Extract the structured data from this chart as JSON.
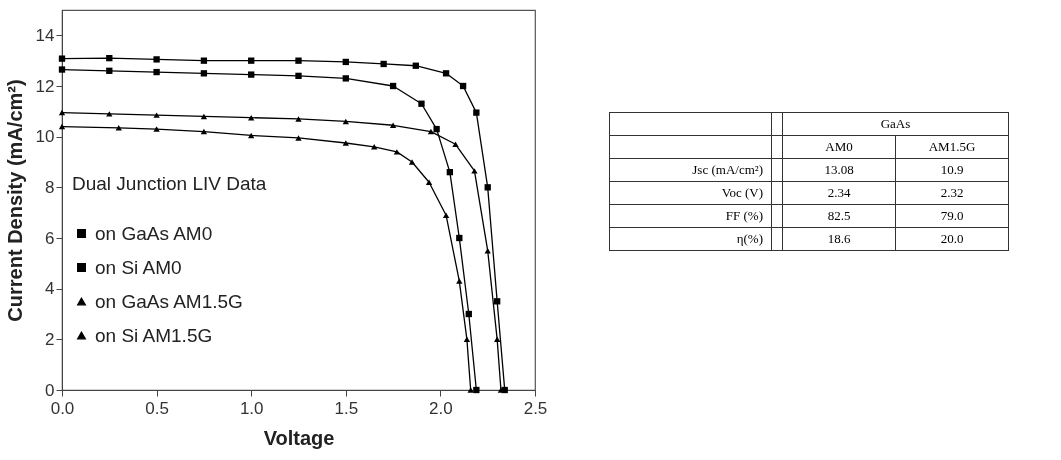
{
  "chart_data": [
    {
      "type": "line",
      "xlabel": "Voltage",
      "ylabel": "Current Density (mA/cm²)",
      "legend_title": "Dual Junction LIV Data",
      "legend": "left",
      "grid": false,
      "line_style": "solid",
      "xlim": [
        0,
        2.5
      ],
      "xticks": [
        {
          "value": 0,
          "label": "0.0"
        },
        0.5,
        {
          "value": 1,
          "label": "1.0"
        },
        1.5,
        {
          "value": 2,
          "label": "2.0"
        },
        2.5
      ],
      "ylim": [
        0,
        15
      ],
      "yticks": [
        0,
        2,
        4,
        6,
        8,
        10,
        12,
        14
      ],
      "series": [
        {
          "name": "on GaAs AM0",
          "color": "#000000",
          "marker": "square",
          "x": [
            0,
            0.25,
            0.5,
            0.75,
            1.0,
            1.25,
            1.5,
            1.7,
            1.87,
            2.03,
            2.12,
            2.19,
            2.25,
            2.3,
            2.34
          ],
          "values": [
            13.08,
            13.1,
            13.05,
            13.0,
            13.0,
            13.0,
            12.95,
            12.87,
            12.8,
            12.5,
            12.0,
            10.95,
            8.0,
            3.5,
            0
          ]
        },
        {
          "name": "on Si AM0",
          "color": "#000000",
          "marker": "square",
          "x": [
            0,
            0.25,
            0.5,
            0.75,
            1.0,
            1.25,
            1.5,
            1.75,
            1.9,
            1.98,
            2.05,
            2.1,
            2.15,
            2.19
          ],
          "values": [
            12.65,
            12.6,
            12.55,
            12.5,
            12.45,
            12.4,
            12.3,
            12.0,
            11.3,
            10.3,
            8.6,
            6.0,
            3.0,
            0
          ]
        },
        {
          "name": "on GaAs AM1.5G",
          "color": "#000000",
          "marker": "triangle",
          "x": [
            0,
            0.25,
            0.5,
            0.75,
            1.0,
            1.25,
            1.5,
            1.75,
            1.95,
            2.08,
            2.18,
            2.25,
            2.3,
            2.32
          ],
          "values": [
            10.95,
            10.9,
            10.85,
            10.8,
            10.75,
            10.7,
            10.6,
            10.45,
            10.2,
            9.7,
            8.65,
            5.5,
            2.0,
            0
          ]
        },
        {
          "name": "on Si AM1.5G",
          "color": "#000000",
          "marker": "triangle",
          "x": [
            0,
            0.3,
            0.5,
            0.75,
            1.0,
            1.25,
            1.5,
            1.65,
            1.77,
            1.85,
            1.94,
            2.03,
            2.1,
            2.14,
            2.16
          ],
          "values": [
            10.4,
            10.35,
            10.3,
            10.2,
            10.05,
            9.95,
            9.75,
            9.6,
            9.4,
            9.0,
            8.2,
            6.9,
            4.3,
            2.0,
            0
          ]
        }
      ]
    },
    {
      "type": "other",
      "title": "GaAs",
      "categories": [
        "AM0",
        "AM1.5G"
      ],
      "y_categories": [
        "Jsc (mA/cm²)",
        "Voc (V)",
        "FF (%)",
        "η(%)"
      ],
      "cell_labels": [
        [
          "13.08",
          "10.9"
        ],
        [
          "2.34",
          "2.32"
        ],
        [
          "82.5",
          "79.0"
        ],
        [
          "18.6",
          "20.0"
        ]
      ]
    }
  ]
}
